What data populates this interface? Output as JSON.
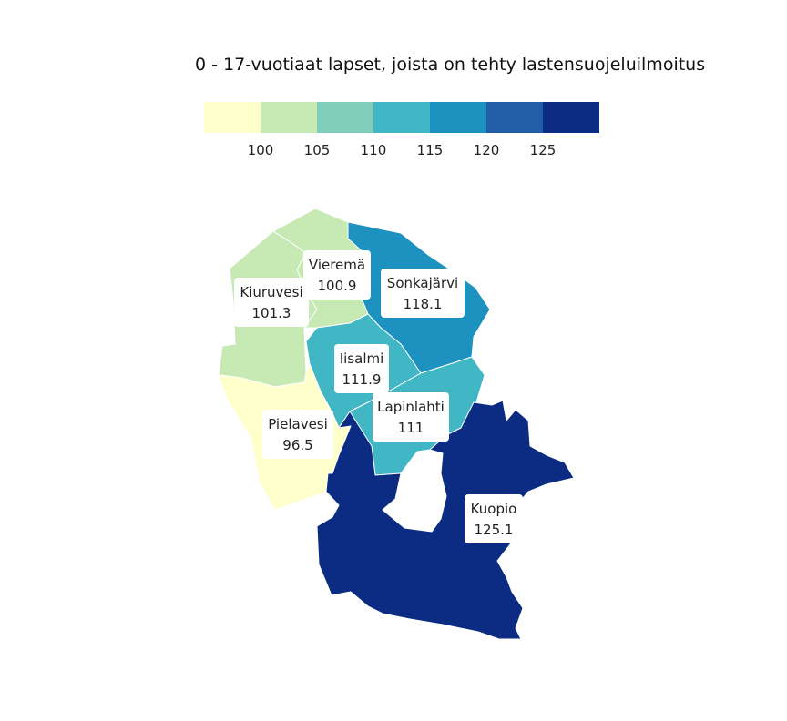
{
  "title": "0 - 17-vuotiaat lapset, joista on tehty lastensuojeluilmoitus",
  "legend": {
    "colors": [
      "#ffffcc",
      "#c7e9b4",
      "#7fcdbb",
      "#41b6c4",
      "#1d91c0",
      "#225ea8",
      "#0c2c84"
    ],
    "ticks": [
      "100",
      "105",
      "110",
      "115",
      "120",
      "125"
    ]
  },
  "chart_data": {
    "type": "choropleth",
    "title": "0 - 17-vuotiaat lapset, joista on tehty lastensuojeluilmoitus",
    "bins": [
      100,
      105,
      110,
      115,
      120,
      125
    ],
    "regions": [
      {
        "name": "Kiuruvesi",
        "value": 101.3,
        "value_label": "101.3",
        "color": "#c7e9b4"
      },
      {
        "name": "Vieremä",
        "value": 100.9,
        "value_label": "100.9",
        "color": "#c7e9b4"
      },
      {
        "name": "Sonkajärvi",
        "value": 118.1,
        "value_label": "118.1",
        "color": "#1d91c0"
      },
      {
        "name": "Iisalmi",
        "value": 111.9,
        "value_label": "111.9",
        "color": "#41b6c4"
      },
      {
        "name": "Lapinlahti",
        "value": 111,
        "value_label": "111",
        "color": "#41b6c4"
      },
      {
        "name": "Pielavesi",
        "value": 96.5,
        "value_label": "96.5",
        "color": "#ffffcc"
      },
      {
        "name": "Kuopio",
        "value": 125.1,
        "value_label": "125.1",
        "color": "#0c2c84"
      }
    ]
  }
}
